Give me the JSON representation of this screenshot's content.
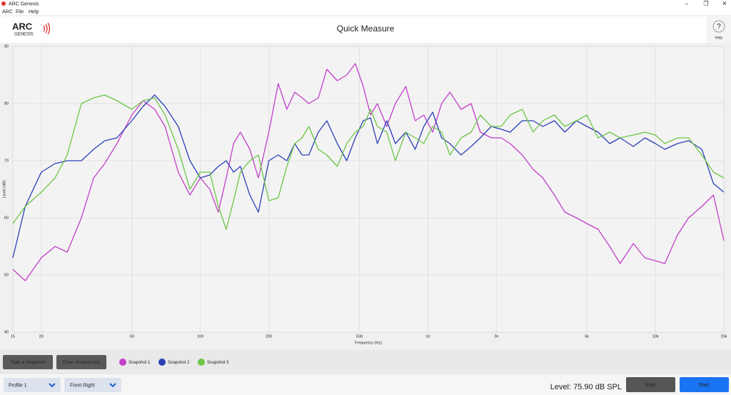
{
  "window": {
    "title": "ARC Genesis",
    "controls": [
      "–",
      "❐",
      "✕"
    ]
  },
  "menu": [
    "ARC",
    "File",
    "Help"
  ],
  "header": {
    "logo": "ARC",
    "logo_sub": "GENESIS",
    "title": "Quick Measure",
    "help_icon": "?",
    "help_label": "Help"
  },
  "snapshot_buttons": [
    "Take a Snapshot",
    "Clear Snapshot(s)"
  ],
  "footer": {
    "profile": "Profile 1",
    "channel": "Front Right",
    "level": "Level: 75.90 dB SPL",
    "stop": "Stop",
    "start": "Start"
  },
  "chart_data": {
    "type": "line",
    "xlabel": "Frequency (Hz)",
    "ylabel": "Level (dB)",
    "log_x": true,
    "grid": true,
    "xlim": [
      15,
      20000
    ],
    "ylim": [
      40,
      90
    ],
    "xticks": [
      15,
      20,
      50,
      100,
      200,
      500,
      {
        "value": 1000,
        "label": "1k"
      },
      {
        "value": 2000,
        "label": "2k"
      },
      {
        "value": 5000,
        "label": "5k"
      },
      {
        "value": 10000,
        "label": "10k"
      },
      {
        "value": 20000,
        "label": "20k"
      }
    ],
    "yticks": [
      40,
      50,
      60,
      70,
      80,
      90
    ],
    "x": [
      15,
      17,
      20,
      23,
      26,
      30,
      34,
      38,
      43,
      50,
      56,
      63,
      70,
      80,
      90,
      100,
      110,
      120,
      130,
      140,
      150,
      165,
      180,
      200,
      220,
      240,
      260,
      280,
      300,
      330,
      360,
      400,
      440,
      480,
      520,
      560,
      600,
      660,
      720,
      800,
      880,
      960,
      1050,
      1150,
      1250,
      1400,
      1550,
      1700,
      1900,
      2100,
      2300,
      2600,
      2900,
      3200,
      3600,
      4000,
      4500,
      5000,
      5600,
      6300,
      7000,
      8000,
      9000,
      10000,
      11000,
      12500,
      14000,
      16000,
      18000,
      20000
    ],
    "series": [
      {
        "name": "Snapshot 1",
        "color": "#c23ec9",
        "values": [
          51,
          49,
          53,
          55,
          54,
          60,
          67,
          69.5,
          73,
          78,
          80.5,
          79,
          76,
          68,
          64,
          67,
          65,
          61,
          67,
          73,
          75,
          72,
          67,
          75,
          83.5,
          79,
          82,
          81,
          80,
          81,
          86,
          84,
          85,
          87,
          83,
          78,
          80,
          76,
          80,
          83,
          77,
          78,
          75,
          80,
          82,
          79,
          80,
          75,
          74,
          74,
          73,
          71,
          68.5,
          67,
          64,
          61,
          60,
          59,
          58,
          55,
          52,
          55.5,
          53,
          52.5,
          52,
          57,
          60,
          62,
          64,
          56
        ]
      },
      {
        "name": "Snapshot 2",
        "color": "#2b3fb8",
        "values": [
          53,
          62,
          68,
          69.5,
          70,
          70,
          72,
          73.5,
          74,
          77,
          79.5,
          81.5,
          79.5,
          76,
          70,
          67,
          67.5,
          69,
          70,
          68,
          69,
          64,
          61,
          70,
          71,
          70,
          73,
          71,
          71,
          75,
          77,
          73,
          70,
          74,
          77,
          77.5,
          73,
          77,
          73,
          75,
          72,
          76,
          78.5,
          74,
          73,
          71,
          72.5,
          74,
          76,
          75.5,
          75,
          77,
          77,
          76,
          77,
          75,
          77,
          76,
          75,
          73,
          74,
          72.5,
          74,
          73,
          72,
          73,
          73.5,
          72,
          66,
          64.5
        ]
      },
      {
        "name": "Snapshot 3",
        "color": "#6cc644",
        "values": [
          59,
          62,
          64.5,
          67,
          71,
          80,
          81,
          81.5,
          80.5,
          79,
          80.5,
          81,
          78,
          72,
          65,
          68,
          68,
          62,
          58,
          63,
          68,
          70,
          71,
          63,
          63.5,
          69,
          73,
          74,
          76,
          72,
          71,
          69,
          73,
          75,
          76,
          79,
          76,
          75,
          70,
          75,
          74,
          73,
          76,
          75,
          71,
          74,
          75,
          78,
          76,
          76,
          78,
          79,
          75,
          77,
          78,
          76,
          77,
          78,
          74,
          75,
          74,
          74.5,
          75,
          74.5,
          73,
          74,
          74,
          71,
          68,
          67
        ]
      }
    ]
  }
}
